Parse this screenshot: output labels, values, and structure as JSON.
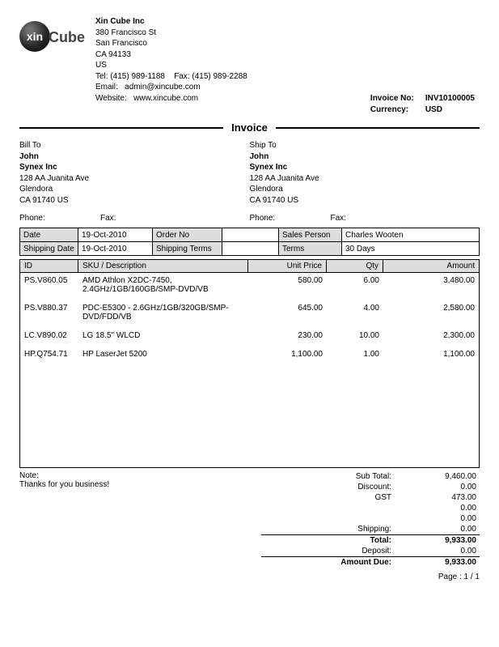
{
  "company": {
    "name": "Xin Cube Inc",
    "addr1": "380 Francisco St",
    "city": "San Francisco",
    "zip": "CA 94133",
    "country": "US",
    "tel_label": "Tel:",
    "tel": "(415) 989-1188",
    "fax_label": "Fax:",
    "fax": "(415) 989-2288",
    "email_label": "Email:",
    "email": "admin@xincube.com",
    "web_label": "Website:",
    "web": "www.xincube.com"
  },
  "logo": {
    "xin": "xin",
    "cube": "Cube"
  },
  "meta": {
    "invoice_no_label": "Invoice No:",
    "invoice_no": "INV10100005",
    "currency_label": "Currency:",
    "currency": "USD"
  },
  "doc_title": "Invoice",
  "bill_to": {
    "title": "Bill To",
    "name": "John",
    "company": "Synex Inc",
    "addr": "128 AA Juanita Ave",
    "city": "Glendora",
    "zip": "CA 91740 US"
  },
  "ship_to": {
    "title": "Ship To",
    "name": "John",
    "company": "Synex Inc",
    "addr": "128 AA Juanita Ave",
    "city": "Glendora",
    "zip": "CA 91740 US"
  },
  "phone_label": "Phone:",
  "fax_label": "Fax:",
  "detail": {
    "date_label": "Date",
    "date": "19-Oct-2010",
    "order_label": "Order No",
    "order": "",
    "salesperson_label": "Sales Person",
    "salesperson": "Charles Wooten",
    "ship_date_label": "Shipping Date",
    "ship_date": "19-Oct-2010",
    "ship_terms_label": "Shipping Terms",
    "ship_terms": "",
    "terms_label": "Terms",
    "terms": "30 Days"
  },
  "columns": {
    "id": "ID",
    "desc": "SKU / Description",
    "price": "Unit Price",
    "qty": "Qty",
    "amount": "Amount"
  },
  "items": [
    {
      "id": "PS.V860.05",
      "desc": "AMD Athlon X2DC-7450, 2.4GHz/1GB/160GB/SMP-DVD/VB",
      "price": "580.00",
      "qty": "6.00",
      "amount": "3,480.00"
    },
    {
      "id": "PS.V880.37",
      "desc": "PDC-E5300 - 2.6GHz/1GB/320GB/SMP-DVD/FDD/VB",
      "price": "645.00",
      "qty": "4.00",
      "amount": "2,580.00"
    },
    {
      "id": "LC.V890.02",
      "desc": "LG 18.5\" WLCD",
      "price": "230.00",
      "qty": "10.00",
      "amount": "2,300.00"
    },
    {
      "id": "HP.Q754.71",
      "desc": "HP LaserJet 5200",
      "price": "1,100.00",
      "qty": "1.00",
      "amount": "1,100.00"
    }
  ],
  "note_label": "Note:",
  "note_text": "Thanks for you business!",
  "totals": {
    "subtotal_label": "Sub Total:",
    "subtotal": "9,460.00",
    "discount_label": "Discount:",
    "discount": "0.00",
    "gst_label": "GST",
    "gst": "473.00",
    "blank1": "0.00",
    "blank2": "0.00",
    "shipping_label": "Shipping:",
    "shipping": "0.00",
    "total_label": "Total:",
    "total": "9,933.00",
    "deposit_label": "Deposit:",
    "deposit": "0.00",
    "due_label": "Amount Due:",
    "due": "9,933.00"
  },
  "page": "Page : 1 / 1"
}
